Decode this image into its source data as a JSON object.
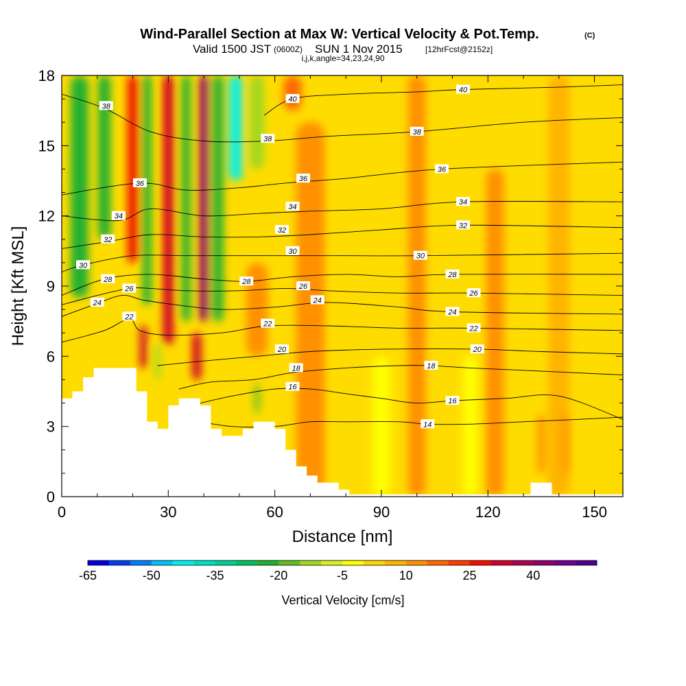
{
  "title": {
    "main": "Wind-Parallel Section at Max W: Vertical Velocity & Pot.Temp.",
    "mark": "(C)",
    "valid_prefix": "Valid 1500 JST",
    "valid_utc": "(0600Z)",
    "valid_date": "SUN 1 Nov 2015",
    "valid_fcst": "[12hrFcst@2152z]",
    "ijk": "i,j,k,angle=34,23,24,90"
  },
  "chart_data": {
    "type": "contour",
    "xlabel": "Distance [nm]",
    "ylabel": "Height [Kft MSL]",
    "xlim": [
      0,
      158
    ],
    "ylim": [
      0,
      18
    ],
    "x_ticks": [
      "0",
      "30",
      "60",
      "90",
      "120",
      "150"
    ],
    "y_ticks": [
      "0",
      "3",
      "6",
      "9",
      "12",
      "15",
      "18"
    ],
    "colorbar": {
      "label": "Vertical Velocity [cm/s]",
      "tick_labels": [
        "-65",
        "-50",
        "-35",
        "-20",
        "-5",
        "10",
        "25",
        "40"
      ],
      "colors": [
        "#0000e0",
        "#0040f0",
        "#0080f8",
        "#00c0f8",
        "#00f0f0",
        "#00e0c0",
        "#00d090",
        "#00c060",
        "#20b030",
        "#60c020",
        "#a0d820",
        "#d8f020",
        "#ffff00",
        "#ffd800",
        "#ffb400",
        "#ff9000",
        "#ff6800",
        "#ff3c00",
        "#f01000",
        "#d00028",
        "#b00050",
        "#900070",
        "#700090",
        "#500090"
      ]
    },
    "shading": {
      "base": "#ffdc00",
      "features": [
        {
          "x": 5,
          "ylo": 8.5,
          "yhi": 18,
          "w": 5,
          "value": -22
        },
        {
          "x": 12,
          "ylo": 11,
          "yhi": 18,
          "w": 3.5,
          "value": -25
        },
        {
          "x": 20,
          "ylo": 10,
          "yhi": 18,
          "w": 3,
          "value": 25
        },
        {
          "x": 24,
          "ylo": 8.2,
          "yhi": 18,
          "w": 2.5,
          "value": -22
        },
        {
          "x": 30,
          "ylo": 6.5,
          "yhi": 18,
          "w": 3,
          "value": 30
        },
        {
          "x": 35,
          "ylo": 7.5,
          "yhi": 18,
          "w": 2.5,
          "value": -25
        },
        {
          "x": 40,
          "ylo": 7.5,
          "yhi": 18,
          "w": 2.5,
          "value": 40
        },
        {
          "x": 44,
          "ylo": 7.5,
          "yhi": 18,
          "w": 3,
          "value": -22
        },
        {
          "x": 49,
          "ylo": 13.5,
          "yhi": 18,
          "w": 3.5,
          "value": -45
        },
        {
          "x": 55,
          "ylo": 14,
          "yhi": 18,
          "w": 4,
          "value": -12
        },
        {
          "x": 55,
          "ylo": 6,
          "yhi": 10,
          "w": 6,
          "value": 12
        },
        {
          "x": 23,
          "ylo": 5.5,
          "yhi": 7.3,
          "w": 2,
          "value": 30
        },
        {
          "x": 27,
          "ylo": 5,
          "yhi": 6.5,
          "w": 1.5,
          "value": -15
        },
        {
          "x": 38,
          "ylo": 5,
          "yhi": 7,
          "w": 2.5,
          "value": 32
        },
        {
          "x": 55,
          "ylo": 3.6,
          "yhi": 4.8,
          "w": 1.5,
          "value": -18
        },
        {
          "x": 65,
          "ylo": 16.5,
          "yhi": 18,
          "w": 5,
          "value": 15
        },
        {
          "x": 70,
          "ylo": 0,
          "yhi": 16,
          "w": 8,
          "value": 10
        },
        {
          "x": 100,
          "ylo": 0,
          "yhi": 18,
          "w": 5,
          "value": 10
        },
        {
          "x": 122,
          "ylo": 0,
          "yhi": 14,
          "w": 5,
          "value": 10
        },
        {
          "x": 140,
          "ylo": 0,
          "yhi": 18,
          "w": 6,
          "value": 8
        },
        {
          "x": 142,
          "ylo": 1,
          "yhi": 3.5,
          "w": 2,
          "value": 14
        },
        {
          "x": 135,
          "ylo": 1,
          "yhi": 3.5,
          "w": 2,
          "value": 12
        },
        {
          "x": 90,
          "ylo": 0,
          "yhi": 6,
          "w": 5,
          "value": -5
        },
        {
          "x": 115,
          "ylo": 0,
          "yhi": 6,
          "w": 4,
          "value": -4
        }
      ]
    },
    "terrain": [
      [
        0,
        4.2
      ],
      [
        3,
        4.2
      ],
      [
        3,
        4.5
      ],
      [
        6,
        4.5
      ],
      [
        6,
        5.1
      ],
      [
        9,
        5.1
      ],
      [
        9,
        5.5
      ],
      [
        21,
        5.5
      ],
      [
        21,
        4.5
      ],
      [
        24,
        4.5
      ],
      [
        24,
        3.2
      ],
      [
        27,
        3.2
      ],
      [
        27,
        2.9
      ],
      [
        30,
        2.9
      ],
      [
        30,
        3.9
      ],
      [
        33,
        3.9
      ],
      [
        33,
        4.2
      ],
      [
        39,
        4.2
      ],
      [
        39,
        3.9
      ],
      [
        42,
        3.9
      ],
      [
        42,
        2.9
      ],
      [
        45,
        2.9
      ],
      [
        45,
        2.6
      ],
      [
        51,
        2.6
      ],
      [
        51,
        2.9
      ],
      [
        54,
        2.9
      ],
      [
        54,
        3.2
      ],
      [
        60,
        3.2
      ],
      [
        60,
        2.9
      ],
      [
        63,
        2.9
      ],
      [
        63,
        2.0
      ],
      [
        66,
        2.0
      ],
      [
        66,
        1.3
      ],
      [
        69,
        1.3
      ],
      [
        69,
        0.9
      ],
      [
        72,
        0.9
      ],
      [
        72,
        0.6
      ],
      [
        78,
        0.6
      ],
      [
        78,
        0.3
      ],
      [
        81,
        0.3
      ],
      [
        81,
        0.1
      ],
      [
        132,
        0.1
      ],
      [
        132,
        0.6
      ],
      [
        138,
        0.6
      ],
      [
        138,
        0.1
      ],
      [
        158,
        0.1
      ]
    ],
    "isentropes": [
      {
        "value": 14,
        "label": "14",
        "label_x": 103,
        "points": [
          [
            39,
            3.2
          ],
          [
            48,
            3.0
          ],
          [
            60,
            3.0
          ],
          [
            70,
            3.2
          ],
          [
            80,
            3.2
          ],
          [
            95,
            3.2
          ],
          [
            103,
            3.1
          ],
          [
            115,
            3.1
          ],
          [
            130,
            3.2
          ],
          [
            145,
            3.3
          ],
          [
            158,
            3.4
          ]
        ]
      },
      {
        "value": 16,
        "label": "16",
        "label_x": 110,
        "points": [
          [
            39,
            4.0
          ],
          [
            48,
            4.3
          ],
          [
            60,
            4.6
          ],
          [
            70,
            4.6
          ],
          [
            80,
            4.4
          ],
          [
            90,
            4.2
          ],
          [
            100,
            4.0
          ],
          [
            110,
            4.1
          ],
          [
            125,
            4.2
          ],
          [
            140,
            4.3
          ],
          [
            158,
            3.3
          ]
        ]
      },
      {
        "value": 18,
        "label": "18",
        "label_x": 104,
        "points": [
          [
            33,
            4.6
          ],
          [
            42,
            4.9
          ],
          [
            54,
            5.0
          ],
          [
            65,
            5.3
          ],
          [
            80,
            5.5
          ],
          [
            95,
            5.6
          ],
          [
            104,
            5.6
          ],
          [
            115,
            5.5
          ],
          [
            130,
            5.4
          ],
          [
            158,
            5.2
          ]
        ]
      },
      {
        "value": 20,
        "label": "20",
        "label_x": 117,
        "points": [
          [
            27,
            5.6
          ],
          [
            40,
            5.8
          ],
          [
            55,
            6.0
          ],
          [
            70,
            6.2
          ],
          [
            90,
            6.3
          ],
          [
            117,
            6.3
          ],
          [
            135,
            6.2
          ],
          [
            158,
            6.1
          ]
        ]
      },
      {
        "value": 22,
        "label": "22",
        "label_x": 116,
        "points": [
          [
            0,
            6.6
          ],
          [
            12,
            7.1
          ],
          [
            19,
            7.6
          ],
          [
            22,
            7.1
          ],
          [
            30,
            6.9
          ],
          [
            45,
            7.0
          ],
          [
            58,
            7.3
          ],
          [
            75,
            7.3
          ],
          [
            95,
            7.2
          ],
          [
            116,
            7.2
          ],
          [
            158,
            7.1
          ]
        ]
      },
      {
        "value": 24,
        "label": "24",
        "label_x": 110,
        "points": [
          [
            0,
            7.7
          ],
          [
            9,
            8.2
          ],
          [
            17,
            8.6
          ],
          [
            23,
            8.4
          ],
          [
            32,
            8.2
          ],
          [
            45,
            8.0
          ],
          [
            60,
            8.1
          ],
          [
            75,
            8.3
          ],
          [
            95,
            8.1
          ],
          [
            110,
            7.9
          ],
          [
            158,
            7.8
          ]
        ]
      },
      {
        "value": 26,
        "label": "26",
        "label_x": 116,
        "points": [
          [
            0,
            8.2
          ],
          [
            10,
            8.6
          ],
          [
            19,
            8.9
          ],
          [
            25,
            8.9
          ],
          [
            35,
            8.8
          ],
          [
            50,
            8.8
          ],
          [
            63,
            8.9
          ],
          [
            75,
            8.8
          ],
          [
            95,
            8.7
          ],
          [
            116,
            8.7
          ],
          [
            158,
            8.6
          ]
        ]
      },
      {
        "value": 28,
        "label": "28",
        "label_x": 110,
        "points": [
          [
            0,
            8.6
          ],
          [
            12,
            9.3
          ],
          [
            25,
            9.5
          ],
          [
            40,
            9.3
          ],
          [
            52,
            9.2
          ],
          [
            65,
            9.4
          ],
          [
            80,
            9.5
          ],
          [
            95,
            9.4
          ],
          [
            110,
            9.5
          ],
          [
            158,
            9.5
          ]
        ]
      },
      {
        "value": 30,
        "label": "30",
        "label_x": 101,
        "points": [
          [
            0,
            9.6
          ],
          [
            6,
            9.9
          ],
          [
            20,
            10.3
          ],
          [
            35,
            10.3
          ],
          [
            50,
            10.3
          ],
          [
            65,
            10.3
          ],
          [
            80,
            10.3
          ],
          [
            101,
            10.3
          ],
          [
            158,
            10.4
          ]
        ]
      },
      {
        "value": 32,
        "label": "32",
        "label_x": 113,
        "points": [
          [
            0,
            10.6
          ],
          [
            13,
            10.9
          ],
          [
            25,
            11.2
          ],
          [
            40,
            11.1
          ],
          [
            55,
            11.1
          ],
          [
            70,
            11.2
          ],
          [
            90,
            11.4
          ],
          [
            113,
            11.6
          ],
          [
            158,
            11.5
          ]
        ]
      },
      {
        "value": 34,
        "label": "34",
        "label_x": 113,
        "points": [
          [
            0,
            12.0
          ],
          [
            16,
            11.8
          ],
          [
            25,
            12.3
          ],
          [
            40,
            12.0
          ],
          [
            55,
            12.1
          ],
          [
            70,
            12.2
          ],
          [
            90,
            12.3
          ],
          [
            113,
            12.6
          ],
          [
            158,
            12.6
          ]
        ]
      },
      {
        "value": 36,
        "label": "36",
        "label_x": 107,
        "points": [
          [
            0,
            12.9
          ],
          [
            22,
            13.4
          ],
          [
            35,
            13.1
          ],
          [
            50,
            13.2
          ],
          [
            63,
            13.4
          ],
          [
            80,
            13.6
          ],
          [
            107,
            14.0
          ],
          [
            158,
            14.3
          ]
        ]
      },
      {
        "value": 38,
        "label": "38",
        "label_x": 100,
        "points": [
          [
            0,
            17.2
          ],
          [
            12,
            16.6
          ],
          [
            25,
            15.6
          ],
          [
            40,
            15.2
          ],
          [
            58,
            15.2
          ],
          [
            75,
            15.4
          ],
          [
            100,
            15.6
          ],
          [
            130,
            16.0
          ],
          [
            158,
            16.2
          ]
        ]
      },
      {
        "value": 40,
        "label": "40",
        "label_x": 113,
        "points": [
          [
            57,
            16.3
          ],
          [
            65,
            17.0
          ],
          [
            80,
            17.2
          ],
          [
            100,
            17.3
          ],
          [
            113,
            17.4
          ],
          [
            140,
            17.5
          ],
          [
            158,
            17.6
          ]
        ]
      }
    ],
    "extra_labels": [
      {
        "label": "38",
        "value": 38,
        "x": 12.5,
        "y": 16.7
      },
      {
        "label": "38",
        "value": 38,
        "x": 58,
        "y": 15.3
      },
      {
        "label": "40",
        "value": 40,
        "x": 65,
        "y": 17.0
      },
      {
        "label": "36",
        "value": 36,
        "x": 22,
        "y": 13.4
      },
      {
        "label": "36",
        "value": 36,
        "x": 68,
        "y": 13.6
      },
      {
        "label": "34",
        "value": 34,
        "x": 16,
        "y": 12.0
      },
      {
        "label": "34",
        "value": 34,
        "x": 65,
        "y": 12.4
      },
      {
        "label": "32",
        "value": 32,
        "x": 13,
        "y": 11.0
      },
      {
        "label": "32",
        "value": 32,
        "x": 62,
        "y": 11.4
      },
      {
        "label": "30",
        "value": 30,
        "x": 6,
        "y": 9.9
      },
      {
        "label": "30",
        "value": 30,
        "x": 65,
        "y": 10.5
      },
      {
        "label": "28",
        "value": 28,
        "x": 13,
        "y": 9.3
      },
      {
        "label": "28",
        "value": 28,
        "x": 52,
        "y": 9.2
      },
      {
        "label": "26",
        "value": 26,
        "x": 19,
        "y": 8.9
      },
      {
        "label": "26",
        "value": 26,
        "x": 68,
        "y": 9.0
      },
      {
        "label": "24",
        "value": 24,
        "x": 10,
        "y": 8.3
      },
      {
        "label": "24",
        "value": 24,
        "x": 72,
        "y": 8.4
      },
      {
        "label": "22",
        "value": 22,
        "x": 19,
        "y": 7.7
      },
      {
        "label": "22",
        "value": 22,
        "x": 58,
        "y": 7.4
      },
      {
        "label": "20",
        "value": 20,
        "x": 62,
        "y": 6.3
      },
      {
        "label": "18",
        "value": 18,
        "x": 66,
        "y": 5.5
      },
      {
        "label": "16",
        "value": 16,
        "x": 65,
        "y": 4.7
      }
    ]
  }
}
